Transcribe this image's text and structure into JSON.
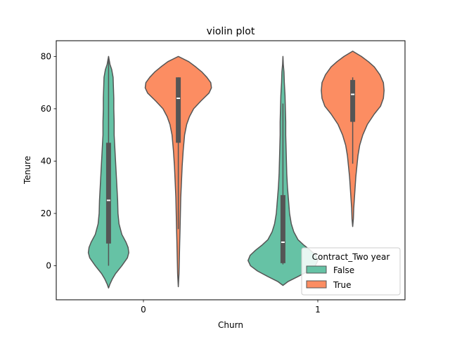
{
  "chart_data": {
    "type": "violin",
    "title": "violin plot",
    "xlabel": "Churn",
    "ylabel": "Tenure",
    "categories": [
      "0",
      "1"
    ],
    "ylim": [
      -13,
      86
    ],
    "yticks": [
      0,
      20,
      40,
      60,
      80
    ],
    "grid": false,
    "legend": {
      "title": "Contract_Two year",
      "placement": "lower-right",
      "entries": [
        {
          "name": "False",
          "color": "#66c2a5"
        },
        {
          "name": "True",
          "color": "#fc8d62"
        }
      ]
    },
    "series": [
      {
        "name": "False",
        "color": "#66c2a5",
        "violins": [
          {
            "category": "0",
            "min": 0,
            "q1": 8.5,
            "median": 25,
            "q3": 47,
            "max": 80,
            "density": [
              [
                -8.5,
                0.0
              ],
              [
                -7,
                0.04
              ],
              [
                -5,
                0.11
              ],
              [
                -3,
                0.2
              ],
              [
                0,
                0.38
              ],
              [
                3,
                0.54
              ],
              [
                5,
                0.58
              ],
              [
                7,
                0.56
              ],
              [
                9,
                0.5
              ],
              [
                12,
                0.38
              ],
              [
                16,
                0.3
              ],
              [
                20,
                0.27
              ],
              [
                25,
                0.26
              ],
              [
                30,
                0.24
              ],
              [
                35,
                0.22
              ],
              [
                40,
                0.2
              ],
              [
                45,
                0.18
              ],
              [
                50,
                0.16
              ],
              [
                55,
                0.16
              ],
              [
                60,
                0.15
              ],
              [
                64,
                0.15
              ],
              [
                68,
                0.14
              ],
              [
                72,
                0.13
              ],
              [
                75,
                0.09
              ],
              [
                77,
                0.04
              ],
              [
                80,
                0.0
              ]
            ]
          },
          {
            "category": "1",
            "min": 0.5,
            "q1": 1,
            "median": 9,
            "q3": 27,
            "max": 62,
            "density": [
              [
                -7.5,
                0.0
              ],
              [
                -6,
                0.15
              ],
              [
                -4,
                0.45
              ],
              [
                -2,
                0.73
              ],
              [
                0,
                0.93
              ],
              [
                2,
                1.0
              ],
              [
                4,
                0.94
              ],
              [
                6,
                0.78
              ],
              [
                8,
                0.59
              ],
              [
                10,
                0.43
              ],
              [
                13,
                0.31
              ],
              [
                16,
                0.24
              ],
              [
                20,
                0.19
              ],
              [
                25,
                0.16
              ],
              [
                30,
                0.13
              ],
              [
                35,
                0.11
              ],
              [
                40,
                0.1
              ],
              [
                45,
                0.09
              ],
              [
                50,
                0.08
              ],
              [
                55,
                0.08
              ],
              [
                60,
                0.07
              ],
              [
                65,
                0.06
              ],
              [
                70,
                0.04
              ],
              [
                74,
                0.03
              ],
              [
                77,
                0.01
              ],
              [
                80,
                0.0
              ]
            ]
          }
        ]
      },
      {
        "name": "True",
        "color": "#fc8d62",
        "violins": [
          {
            "category": "0",
            "min": 14,
            "q1": 47,
            "median": 64,
            "q3": 72,
            "max": 72,
            "density": [
              [
                -8,
                0.0
              ],
              [
                -3,
                0.02
              ],
              [
                3,
                0.03
              ],
              [
                9,
                0.04
              ],
              [
                14,
                0.05
              ],
              [
                20,
                0.06
              ],
              [
                26,
                0.07
              ],
              [
                32,
                0.09
              ],
              [
                38,
                0.11
              ],
              [
                44,
                0.14
              ],
              [
                50,
                0.18
              ],
              [
                54,
                0.24
              ],
              [
                57,
                0.32
              ],
              [
                60,
                0.44
              ],
              [
                63,
                0.65
              ],
              [
                66,
                0.88
              ],
              [
                68,
                0.95
              ],
              [
                70,
                0.93
              ],
              [
                72,
                0.82
              ],
              [
                74,
                0.68
              ],
              [
                76,
                0.5
              ],
              [
                78,
                0.3
              ],
              [
                80,
                0.0
              ]
            ]
          },
          {
            "category": "1",
            "min": 39,
            "q1": 55,
            "median": 65.5,
            "q3": 71,
            "max": 72,
            "density": [
              [
                15,
                0.0
              ],
              [
                18,
                0.02
              ],
              [
                22,
                0.03
              ],
              [
                26,
                0.05
              ],
              [
                30,
                0.07
              ],
              [
                34,
                0.09
              ],
              [
                38,
                0.12
              ],
              [
                42,
                0.15
              ],
              [
                46,
                0.2
              ],
              [
                50,
                0.29
              ],
              [
                54,
                0.42
              ],
              [
                58,
                0.62
              ],
              [
                61,
                0.8
              ],
              [
                64,
                0.88
              ],
              [
                67,
                0.9
              ],
              [
                70,
                0.88
              ],
              [
                73,
                0.78
              ],
              [
                76,
                0.62
              ],
              [
                78,
                0.45
              ],
              [
                80,
                0.25
              ],
              [
                82,
                0.0
              ]
            ]
          }
        ]
      }
    ]
  }
}
